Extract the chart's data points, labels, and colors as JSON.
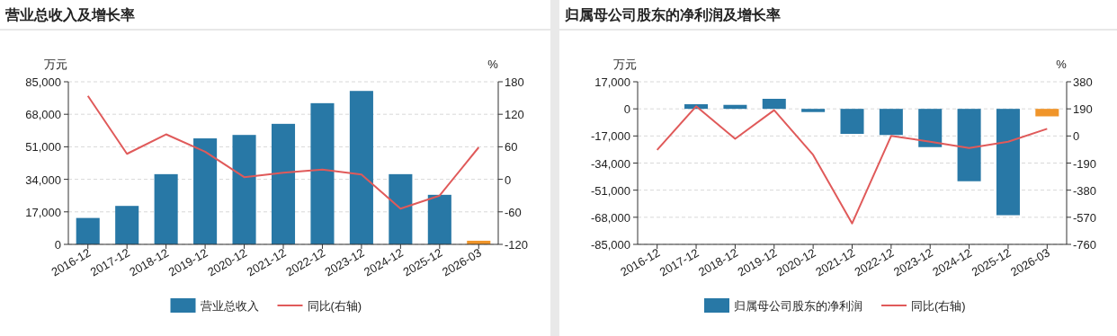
{
  "chart_data": [
    {
      "type": "bar",
      "title": "营业总收入及增长率",
      "ylabel": "万元",
      "y2label": "%",
      "categories": [
        "2016-12",
        "2017-12",
        "2018-12",
        "2019-12",
        "2020-12",
        "2021-12",
        "2022-12",
        "2023-12",
        "2024-12",
        "2025-12",
        "2026-03"
      ],
      "series": [
        {
          "name": "营业总收入",
          "colors": [
            "#2878a6",
            "#2878a6",
            "#2878a6",
            "#2878a6",
            "#2878a6",
            "#2878a6",
            "#2878a6",
            "#2878a6",
            "#2878a6",
            "#2878a6",
            "#f0952a"
          ],
          "values": [
            13800,
            20100,
            36700,
            55400,
            57200,
            63000,
            73800,
            80200,
            36700,
            25900,
            1900
          ]
        },
        {
          "name": "同比(右轴)",
          "type": "line",
          "axis": "y2",
          "color": "#e05a5a",
          "values": [
            154,
            47,
            83,
            51,
            4,
            12,
            18,
            9,
            -54,
            -30,
            59
          ]
        }
      ],
      "ylim": [
        0,
        85000
      ],
      "yticks": [
        0,
        {
          "value": 17000,
          "label": "17,000"
        },
        {
          "value": 34000,
          "label": "34,000"
        },
        {
          "value": 51000,
          "label": "51,000"
        },
        {
          "value": 68000,
          "label": "68,000"
        },
        {
          "value": 85000,
          "label": "85,000"
        }
      ],
      "y2lim": [
        -120,
        180
      ],
      "y2ticks": [
        -120,
        -60,
        0,
        60,
        120,
        180
      ],
      "grid": "y",
      "legend": "bottom"
    },
    {
      "type": "bar",
      "title": "归属母公司股东的净利润及增长率",
      "ylabel": "万元",
      "y2label": "%",
      "categories": [
        "2016-12",
        "2017-12",
        "2018-12",
        "2019-12",
        "2020-12",
        "2021-12",
        "2022-12",
        "2023-12",
        "2024-12",
        "2025-12",
        "2026-03"
      ],
      "series": [
        {
          "name": "归属母公司股东的净利润",
          "colors": [
            "#2878a6",
            "#2878a6",
            "#2878a6",
            "#2878a6",
            "#2878a6",
            "#2878a6",
            "#2878a6",
            "#2878a6",
            "#2878a6",
            "#2878a6",
            "#f0952a"
          ],
          "values": [
            null,
            2900,
            2500,
            6300,
            -2000,
            -15700,
            -16400,
            -24000,
            -45400,
            -66700,
            -4700
          ]
        },
        {
          "name": "同比(右轴)",
          "type": "line",
          "axis": "y2",
          "color": "#e05a5a",
          "values": [
            -98,
            208,
            -20,
            181,
            -133,
            -613,
            0,
            -40,
            -85,
            -40,
            50
          ]
        }
      ],
      "ylim": [
        -85000,
        17000
      ],
      "yticks": [
        {
          "value": -85000,
          "label": "-85,000"
        },
        {
          "value": -68000,
          "label": "-68,000"
        },
        {
          "value": -51000,
          "label": "-51,000"
        },
        {
          "value": -34000,
          "label": "-34,000"
        },
        {
          "value": -17000,
          "label": "-17,000"
        },
        0,
        {
          "value": 17000,
          "label": "17,000"
        }
      ],
      "y2lim": [
        -760,
        380
      ],
      "y2ticks": [
        -760,
        -570,
        -380,
        -190,
        0,
        190,
        380
      ],
      "grid": "y",
      "legend": "bottom"
    }
  ]
}
